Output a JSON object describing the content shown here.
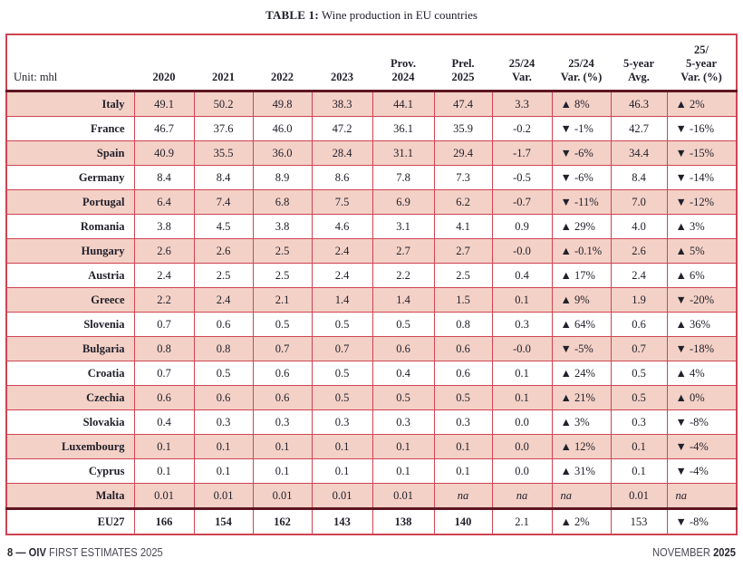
{
  "title": {
    "prefix": "TABLE 1:",
    "text": "Wine production in EU countries"
  },
  "table": {
    "unit_label": "Unit: mhl",
    "columns": [
      "2020",
      "2021",
      "2022",
      "2023",
      "Prov.\n2024",
      "Prel.\n2025",
      "25/24\nVar.",
      "25/24\nVar. (%)",
      "5-year\nAvg.",
      "25/\n5-year\nVar. (%)"
    ],
    "rows": [
      {
        "country": "Italy",
        "cells": [
          "49.1",
          "50.2",
          "49.8",
          "38.3",
          "44.1",
          "47.4",
          "3.3",
          "▲ 8%",
          "46.3",
          "▲ 2%"
        ]
      },
      {
        "country": "France",
        "cells": [
          "46.7",
          "37.6",
          "46.0",
          "47.2",
          "36.1",
          "35.9",
          "-0.2",
          "▼ -1%",
          "42.7",
          "▼ -16%"
        ]
      },
      {
        "country": "Spain",
        "cells": [
          "40.9",
          "35.5",
          "36.0",
          "28.4",
          "31.1",
          "29.4",
          "-1.7",
          "▼ -6%",
          "34.4",
          "▼ -15%"
        ]
      },
      {
        "country": "Germany",
        "cells": [
          "8.4",
          "8.4",
          "8.9",
          "8.6",
          "7.8",
          "7.3",
          "-0.5",
          "▼ -6%",
          "8.4",
          "▼ -14%"
        ]
      },
      {
        "country": "Portugal",
        "cells": [
          "6.4",
          "7.4",
          "6.8",
          "7.5",
          "6.9",
          "6.2",
          "-0.7",
          "▼ -11%",
          "7.0",
          "▼ -12%"
        ]
      },
      {
        "country": "Romania",
        "cells": [
          "3.8",
          "4.5",
          "3.8",
          "4.6",
          "3.1",
          "4.1",
          "0.9",
          "▲ 29%",
          "4.0",
          "▲ 3%"
        ]
      },
      {
        "country": "Hungary",
        "cells": [
          "2.6",
          "2.6",
          "2.5",
          "2.4",
          "2.7",
          "2.7",
          "-0.0",
          "▲ -0.1%",
          "2.6",
          "▲ 5%"
        ]
      },
      {
        "country": "Austria",
        "cells": [
          "2.4",
          "2.5",
          "2.5",
          "2.4",
          "2.2",
          "2.5",
          "0.4",
          "▲ 17%",
          "2.4",
          "▲ 6%"
        ]
      },
      {
        "country": "Greece",
        "cells": [
          "2.2",
          "2.4",
          "2.1",
          "1.4",
          "1.4",
          "1.5",
          "0.1",
          "▲ 9%",
          "1.9",
          "▼ -20%"
        ]
      },
      {
        "country": "Slovenia",
        "cells": [
          "0.7",
          "0.6",
          "0.5",
          "0.5",
          "0.5",
          "0.8",
          "0.3",
          "▲ 64%",
          "0.6",
          "▲ 36%"
        ]
      },
      {
        "country": "Bulgaria",
        "cells": [
          "0.8",
          "0.8",
          "0.7",
          "0.7",
          "0.6",
          "0.6",
          "-0.0",
          "▼ -5%",
          "0.7",
          "▼ -18%"
        ]
      },
      {
        "country": "Croatia",
        "cells": [
          "0.7",
          "0.5",
          "0.6",
          "0.5",
          "0.4",
          "0.6",
          "0.1",
          "▲ 24%",
          "0.5",
          "▲ 4%"
        ]
      },
      {
        "country": "Czechia",
        "cells": [
          "0.6",
          "0.6",
          "0.6",
          "0.5",
          "0.5",
          "0.5",
          "0.1",
          "▲ 21%",
          "0.5",
          "▲ 0%"
        ]
      },
      {
        "country": "Slovakia",
        "cells": [
          "0.4",
          "0.3",
          "0.3",
          "0.3",
          "0.3",
          "0.3",
          "0.0",
          "▲ 3%",
          "0.3",
          "▼ -8%"
        ]
      },
      {
        "country": "Luxembourg",
        "cells": [
          "0.1",
          "0.1",
          "0.1",
          "0.1",
          "0.1",
          "0.1",
          "0.0",
          "▲ 12%",
          "0.1",
          "▼ -4%"
        ]
      },
      {
        "country": "Cyprus",
        "cells": [
          "0.1",
          "0.1",
          "0.1",
          "0.1",
          "0.1",
          "0.1",
          "0.0",
          "▲ 31%",
          "0.1",
          "▼ -4%"
        ]
      },
      {
        "country": "Malta",
        "cells": [
          "0.01",
          "0.01",
          "0.01",
          "0.01",
          "0.01",
          "na",
          "na",
          "na",
          "0.01",
          "na"
        ]
      },
      {
        "country": "EU27",
        "cells": [
          "166",
          "154",
          "162",
          "143",
          "138",
          "140",
          "2.1",
          "▲ 2%",
          "153",
          "▼ -8%"
        ],
        "total": true
      }
    ]
  },
  "footer": {
    "page": "8",
    "separator": "—",
    "brand": "OIV",
    "left_text": "FIRST ESTIMATES",
    "left_year": "2025",
    "right_text": "NOVEMBER",
    "right_year": "2025"
  },
  "colors": {
    "border_red": "#ce4452",
    "row_pink": "#f4d1c7",
    "separator_dark": "#5f1722",
    "text": "#21212b"
  }
}
